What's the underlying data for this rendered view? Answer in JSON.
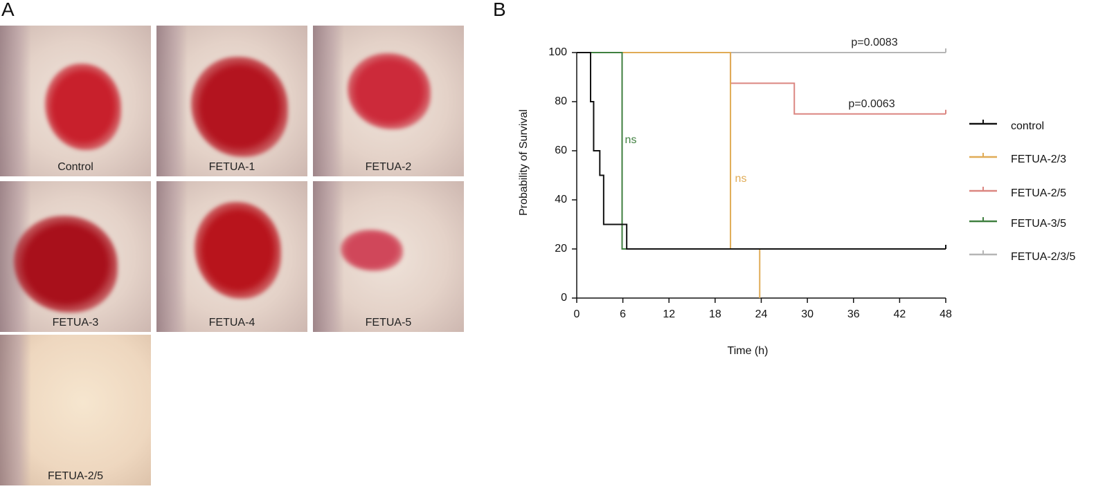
{
  "panels": [
    "A",
    "B"
  ],
  "photos": [
    "Control",
    "FETUA-1",
    "FETUA-2",
    "FETUA-3",
    "FETUA-4",
    "FETUA-5",
    "FETUA-2/5"
  ],
  "chart_data": {
    "type": "step",
    "x_label": "Time (h)",
    "y_label": "Probability of Survival",
    "xlim": [
      0,
      48
    ],
    "xticks": [
      0,
      6,
      12,
      18,
      24,
      30,
      36,
      42,
      48
    ],
    "ylim": [
      0,
      100
    ],
    "yticks": [
      0,
      20,
      40,
      60,
      80,
      100
    ],
    "series": [
      {
        "name": "control",
        "color": "#111111",
        "x": [
          0,
          1.8,
          2.2,
          3.0,
          3.5,
          6.5,
          48
        ],
        "values": [
          100,
          80,
          60,
          50,
          30,
          20,
          20
        ]
      },
      {
        "name": "FETUA-2/3",
        "color": "#e0ab55",
        "x": [
          0,
          20,
          23.8
        ],
        "values": [
          100,
          20,
          0
        ]
      },
      {
        "name": "FETUA-2/5",
        "color": "#db8580",
        "x": [
          0,
          20,
          28.3,
          48
        ],
        "values": [
          100,
          87.5,
          75,
          75
        ]
      },
      {
        "name": "FETUA-3/5",
        "color": "#3f7f3f",
        "x": [
          0,
          5.9,
          6.5
        ],
        "values": [
          100,
          20,
          20
        ]
      },
      {
        "name": "FETUA-2/3/5",
        "color": "#b5b5b5",
        "x": [
          0,
          48
        ],
        "values": [
          100,
          100
        ]
      }
    ],
    "annotations": [
      "p=0.0083",
      "p=0.0063",
      "ns",
      "ns"
    ]
  }
}
